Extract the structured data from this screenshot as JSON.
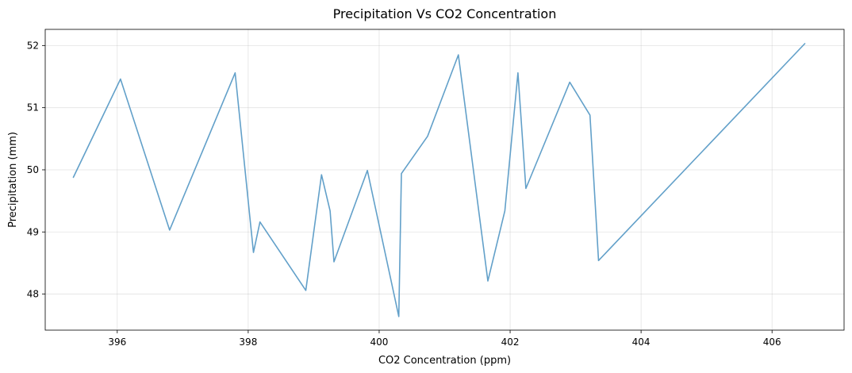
{
  "chart_data": {
    "type": "line",
    "title": "Precipitation Vs CO2 Concentration",
    "xlabel": "CO2 Concentration (ppm)",
    "ylabel": "Precipitation (mm)",
    "xlim": [
      394.9,
      407.1
    ],
    "ylim": [
      47.42,
      52.26
    ],
    "xticks": [
      396,
      398,
      400,
      402,
      404,
      406
    ],
    "yticks": [
      48,
      49,
      50,
      51,
      52
    ],
    "grid": true,
    "legend": "none",
    "series": [
      {
        "color": "#5a9bc6",
        "opacity": 0.95,
        "points": [
          {
            "x": 395.33,
            "y": 49.88
          },
          {
            "x": 396.05,
            "y": 51.46
          },
          {
            "x": 396.8,
            "y": 49.03
          },
          {
            "x": 397.8,
            "y": 51.56
          },
          {
            "x": 398.08,
            "y": 48.67
          },
          {
            "x": 398.18,
            "y": 49.16
          },
          {
            "x": 398.88,
            "y": 48.06
          },
          {
            "x": 399.12,
            "y": 49.92
          },
          {
            "x": 399.25,
            "y": 49.34
          },
          {
            "x": 399.31,
            "y": 48.52
          },
          {
            "x": 399.82,
            "y": 49.99
          },
          {
            "x": 400.3,
            "y": 47.64
          },
          {
            "x": 400.34,
            "y": 49.94
          },
          {
            "x": 400.74,
            "y": 50.54
          },
          {
            "x": 401.21,
            "y": 51.85
          },
          {
            "x": 401.66,
            "y": 48.21
          },
          {
            "x": 401.92,
            "y": 49.34
          },
          {
            "x": 402.12,
            "y": 51.56
          },
          {
            "x": 402.24,
            "y": 49.7
          },
          {
            "x": 402.91,
            "y": 51.41
          },
          {
            "x": 403.22,
            "y": 50.88
          },
          {
            "x": 403.35,
            "y": 48.54
          },
          {
            "x": 406.5,
            "y": 52.03
          }
        ]
      }
    ]
  }
}
